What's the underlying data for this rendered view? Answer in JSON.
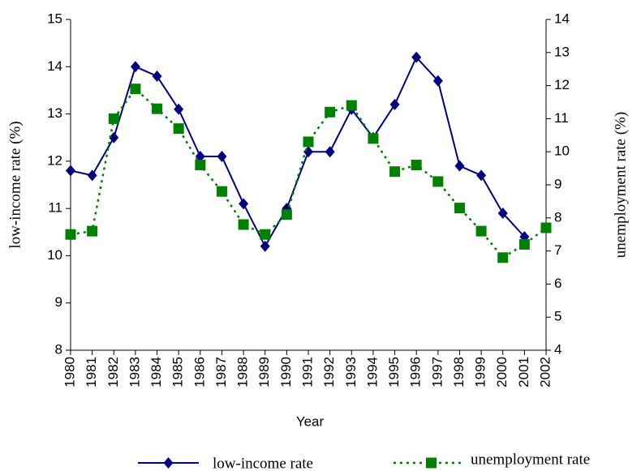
{
  "chart_data": {
    "type": "line",
    "x_label": "Year",
    "y_label": "low-income rate (%)",
    "y2_label": "unemployment rate (%)",
    "x": [
      1980,
      1981,
      1982,
      1983,
      1984,
      1985,
      1986,
      1987,
      1988,
      1989,
      1990,
      1991,
      1992,
      1993,
      1994,
      1995,
      1996,
      1997,
      1998,
      1999,
      2000,
      2001,
      2002
    ],
    "xlim": [
      1980,
      2002
    ],
    "xticks": [
      1980,
      1981,
      1982,
      1983,
      1984,
      1985,
      1986,
      1987,
      1988,
      1989,
      1990,
      1991,
      1992,
      1993,
      1994,
      1995,
      1996,
      1997,
      1998,
      1999,
      2000,
      2001,
      2002
    ],
    "ylim": [
      8,
      15
    ],
    "yticks": [
      8,
      9,
      10,
      11,
      12,
      13,
      14,
      15
    ],
    "y2lim": [
      4,
      14
    ],
    "y2ticks": [
      4,
      5,
      6,
      7,
      8,
      9,
      10,
      11,
      12,
      13,
      14
    ],
    "legend": "bottom",
    "series": [
      {
        "name": "low-income rate",
        "color": "#000080",
        "marker": "diamond",
        "line_style": "solid",
        "values": [
          11.8,
          11.7,
          12.5,
          14.0,
          13.8,
          13.1,
          12.1,
          12.1,
          11.1,
          10.2,
          11.0,
          12.2,
          12.2,
          13.1,
          12.5,
          13.2,
          14.2,
          13.7,
          11.9,
          11.7,
          10.9,
          10.4,
          null
        ]
      },
      {
        "name": "unemployment rate",
        "color": "#008000",
        "marker": "square",
        "line_style": "dotted",
        "axis": "y2",
        "values": [
          7.5,
          7.6,
          11.0,
          11.9,
          11.3,
          10.7,
          9.6,
          8.8,
          7.8,
          7.5,
          8.1,
          10.3,
          11.2,
          11.4,
          10.4,
          9.4,
          9.6,
          9.1,
          8.3,
          7.6,
          6.8,
          7.2,
          7.7
        ]
      }
    ]
  }
}
